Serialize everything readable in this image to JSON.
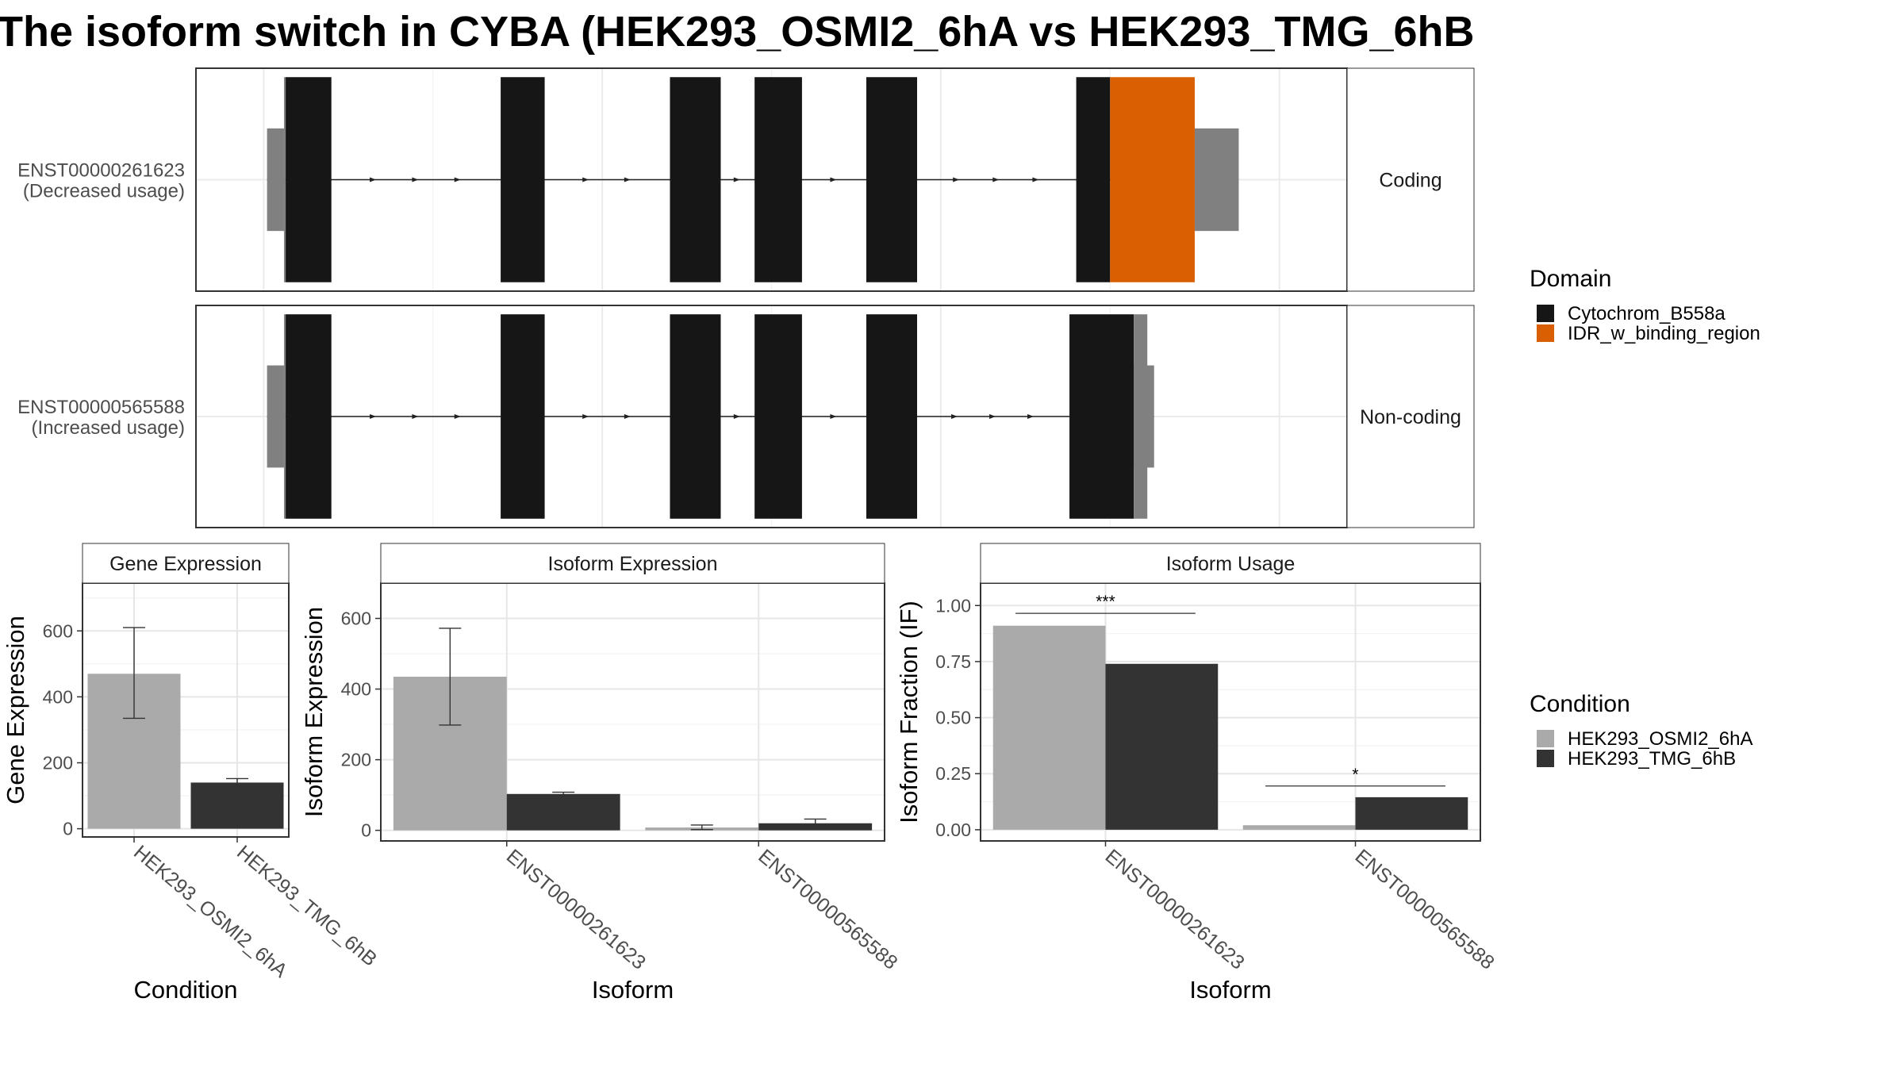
{
  "title": "The isoform switch in CYBA (HEK293_OSMI2_6hA vs HEK293_TMG_6hB",
  "colors": {
    "cytochrom": "#161616",
    "idr": "#D95F02",
    "utr": "#808080",
    "condition1": "#AAAAAA",
    "condition2": "#333333"
  },
  "structure": {
    "rows": [
      {
        "id": "ENST00000261623",
        "label_line1": "ENST00000261623",
        "label_line2": "(Decreased usage)",
        "strip": "Coding",
        "exons": [
          [
            1,
            6
          ],
          [
            6.5,
            20
          ],
          [
            70,
            83
          ],
          [
            120,
            135
          ],
          [
            145,
            159
          ],
          [
            178,
            193
          ],
          [
            240,
            250
          ],
          [
            250,
            275
          ],
          [
            275,
            288
          ]
        ],
        "cds": [
          [
            6.5,
            20,
            "cytochrom"
          ],
          [
            70,
            83,
            "cytochrom"
          ],
          [
            120,
            135,
            "cytochrom"
          ],
          [
            145,
            159,
            "cytochrom"
          ],
          [
            178,
            193,
            "cytochrom"
          ],
          [
            240,
            250,
            "cytochrom"
          ],
          [
            250,
            275,
            "idr"
          ]
        ],
        "utr5": [
          1,
          6
        ],
        "utr3": [
          275,
          288
        ]
      },
      {
        "id": "ENST00000565588",
        "label_line1": "ENST00000565588",
        "label_line2": "(Increased usage)",
        "strip": "Non-coding",
        "exons": [
          [
            1,
            6
          ],
          [
            6.5,
            20
          ],
          [
            70,
            83
          ],
          [
            120,
            135
          ],
          [
            145,
            159
          ],
          [
            178,
            193
          ],
          [
            238,
            257
          ],
          [
            257,
            263
          ]
        ],
        "cds": [
          [
            6.5,
            20,
            "cytochrom"
          ],
          [
            70,
            83,
            "cytochrom"
          ],
          [
            120,
            135,
            "cytochrom"
          ],
          [
            145,
            159,
            "cytochrom"
          ],
          [
            178,
            193,
            "cytochrom"
          ],
          [
            238,
            257,
            "cytochrom"
          ]
        ],
        "utr5": [
          1,
          6
        ],
        "utr3": [
          257,
          263
        ]
      }
    ]
  },
  "legend_domain": {
    "title": "Domain",
    "items": [
      {
        "label": "Cytochrom_B558a",
        "color": "cytochrom"
      },
      {
        "label": "IDR_w_binding_region",
        "color": "idr"
      }
    ]
  },
  "legend_condition": {
    "title": "Condition",
    "items": [
      {
        "label": "HEK293_OSMI2_6hA",
        "color": "condition1"
      },
      {
        "label": "HEK293_TMG_6hB",
        "color": "condition2"
      }
    ]
  },
  "chart_data": [
    {
      "type": "bar",
      "title": "Gene Expression",
      "xlabel": "Condition",
      "ylabel": "Gene Expression",
      "categories": [
        "HEK293_OSMI2_6hA",
        "HEK293_TMG_6hB"
      ],
      "values": [
        470,
        140
      ],
      "error": [
        [
          335,
          610
        ],
        [
          130,
          152
        ]
      ],
      "ylim": [
        -25,
        745
      ],
      "yticks": [
        0,
        200,
        400,
        600
      ],
      "grid": true
    },
    {
      "type": "bar",
      "title": "Isoform Expression",
      "xlabel": "Isoform",
      "ylabel": "Isoform Expression",
      "categories": [
        "ENST00000261623",
        "ENST00000565588"
      ],
      "series": [
        {
          "name": "HEK293_OSMI2_6hA",
          "values": [
            435,
            8
          ],
          "error": [
            [
              298,
              572
            ],
            [
              2,
              15
            ]
          ]
        },
        {
          "name": "HEK293_TMG_6hB",
          "values": [
            103,
            20
          ],
          "error": [
            [
              98,
              108
            ],
            [
              8,
              32
            ]
          ]
        }
      ],
      "ylim": [
        -30,
        700
      ],
      "yticks": [
        0,
        200,
        400,
        600
      ],
      "grid": true
    },
    {
      "type": "bar",
      "title": "Isoform Usage",
      "xlabel": "Isoform",
      "ylabel": "Isoform Fraction (IF)",
      "categories": [
        "ENST00000261623",
        "ENST00000565588"
      ],
      "series": [
        {
          "name": "HEK293_OSMI2_6hA",
          "values": [
            0.91,
            0.02
          ]
        },
        {
          "name": "HEK293_TMG_6hB",
          "values": [
            0.74,
            0.145
          ]
        }
      ],
      "significance": [
        {
          "category": 0,
          "label": "***",
          "y": 0.965
        },
        {
          "category": 1,
          "label": "*",
          "y": 0.195
        }
      ],
      "ylim": [
        -0.05,
        1.1
      ],
      "yticks": [
        0.0,
        0.25,
        0.5,
        0.75,
        1.0
      ],
      "ytick_labels": [
        "0.00",
        "0.25",
        "0.50",
        "0.75",
        "1.00"
      ],
      "grid": true
    }
  ]
}
